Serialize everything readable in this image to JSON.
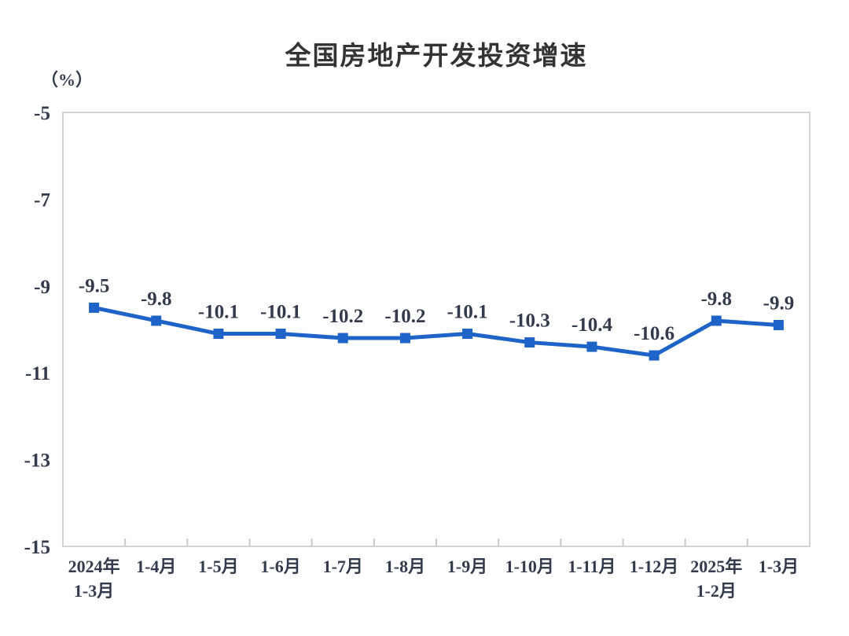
{
  "header": {
    "title": "全国房地产开发投资增速",
    "unit_label": "（%）"
  },
  "chart_data": {
    "type": "line",
    "title": "全国房地产开发投资增速",
    "unit": "（%）",
    "categories": [
      "2024年\n1-3月",
      "1-4月",
      "1-5月",
      "1-6月",
      "1-7月",
      "1-8月",
      "1-9月",
      "1-10月",
      "1-11月",
      "1-12月",
      "2025年\n1-2月",
      "1-3月"
    ],
    "values": [
      -9.5,
      -9.8,
      -10.1,
      -10.1,
      -10.2,
      -10.2,
      -10.1,
      -10.3,
      -10.4,
      -10.6,
      -9.8,
      -9.9
    ],
    "data_labels": [
      "-9.5",
      "-9.8",
      "-10.1",
      "-10.1",
      "-10.2",
      "-10.2",
      "-10.1",
      "-10.3",
      "-10.4",
      "-10.6",
      "-9.8",
      "-9.9"
    ],
    "y_ticks": [
      "-5",
      "-7",
      "-9",
      "-11",
      "-13",
      "-15"
    ],
    "ylim": [
      -15,
      -5
    ],
    "xlabel": "",
    "ylabel": "（%）",
    "grid": false,
    "legend": false,
    "marker": "square",
    "colors": {
      "line": "#1e64c8",
      "plot_border": "#d4d4d4",
      "tick": "#c9c9c9",
      "label_text": "#333a4c",
      "title_text": "#333333"
    }
  }
}
